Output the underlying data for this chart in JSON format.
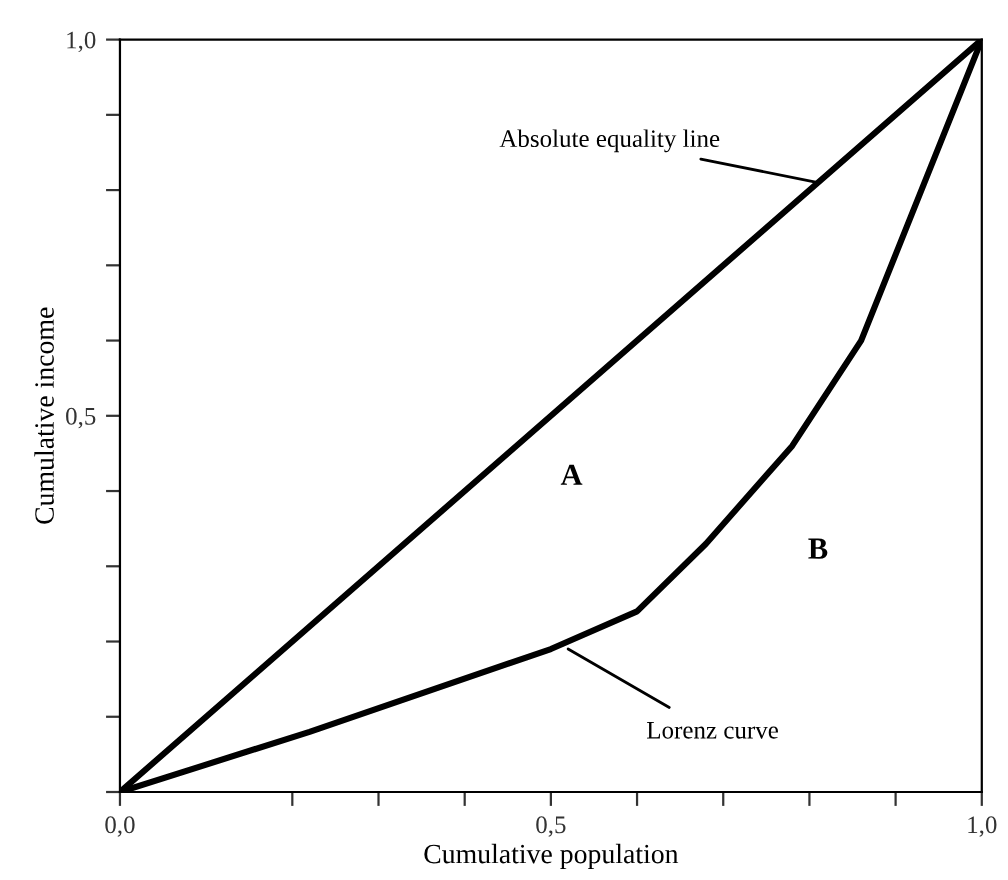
{
  "chart_data": {
    "type": "line",
    "xlabel": "Cumulative population",
    "ylabel": "Cumulative income",
    "xlim": [
      0,
      1
    ],
    "ylim": [
      0,
      1
    ],
    "xticks": [
      {
        "value": 0,
        "label": "0,0"
      },
      {
        "value": 0.2,
        "label": null
      },
      {
        "value": 0.3,
        "label": null
      },
      {
        "value": 0.4,
        "label": null
      },
      {
        "value": 0.5,
        "label": "0,5"
      },
      {
        "value": 0.6,
        "label": null
      },
      {
        "value": 0.7,
        "label": null
      },
      {
        "value": 0.8,
        "label": null
      },
      {
        "value": 0.9,
        "label": null
      },
      {
        "value": 1,
        "label": "1,0"
      }
    ],
    "yticks": [
      {
        "value": 0,
        "label": null
      },
      {
        "value": 0.1,
        "label": null
      },
      {
        "value": 0.2,
        "label": null
      },
      {
        "value": 0.3,
        "label": null
      },
      {
        "value": 0.4,
        "label": null
      },
      {
        "value": 0.5,
        "label": "0,5"
      },
      {
        "value": 0.6,
        "label": null
      },
      {
        "value": 0.7,
        "label": null
      },
      {
        "value": 0.8,
        "label": null
      },
      {
        "value": 0.9,
        "label": null
      },
      {
        "value": 1,
        "label": "1,0"
      }
    ],
    "series": [
      {
        "color": "#000000",
        "x": [
          0,
          1
        ],
        "values": [
          0,
          1
        ]
      },
      {
        "color": "#000000",
        "x": [
          0,
          0.22,
          0.5,
          0.6,
          0.68,
          0.78,
          0.86,
          1
        ],
        "values": [
          0,
          0.08,
          0.19,
          0.24,
          0.33,
          0.46,
          0.6,
          1
        ]
      }
    ],
    "annotations": [
      {
        "text": "Absolute equality line",
        "x": 0.81,
        "y": 0.81
      },
      {
        "text": "Lorenz curve",
        "x": 0.52,
        "y": 0.19
      },
      "A",
      "B"
    ],
    "grid": false,
    "legend": false,
    "marker": "none",
    "line_style": "solid"
  }
}
